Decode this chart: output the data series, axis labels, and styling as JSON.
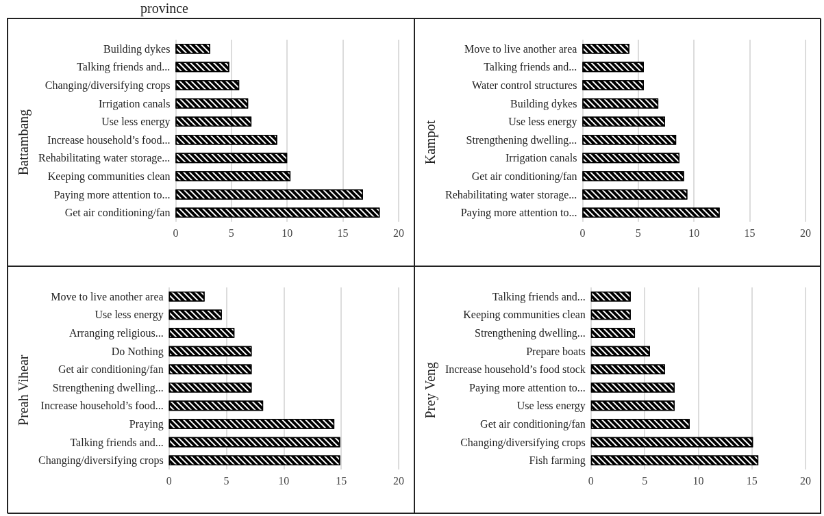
{
  "chart_data": [
    {
      "type": "bar",
      "orientation": "horizontal",
      "title": "province",
      "ylabel": "Battambang",
      "categories": [
        "Building dykes",
        "Talking friends and...",
        "Changing/diversifying crops",
        "Irrigation canals",
        "Use less energy",
        "Increase household’s food...",
        "Rehabilitating water storage...",
        "Keeping communities clean",
        "Paying more attention to...",
        "Get air conditioning/fan"
      ],
      "values": [
        3.1,
        4.8,
        5.7,
        6.5,
        6.8,
        9.1,
        10.0,
        10.3,
        16.8,
        18.3
      ],
      "color": "#000000",
      "xlim": [
        0,
        20
      ],
      "xticks": [
        0,
        5,
        10,
        15,
        20
      ],
      "grid": "x"
    },
    {
      "type": "bar",
      "orientation": "horizontal",
      "ylabel": "Kampot",
      "categories": [
        "Move to live another area",
        "Talking friends and...",
        "Water control structures",
        "Building dykes",
        "Use less energy",
        "Strengthening dwelling...",
        "Irrigation canals",
        "Get air conditioning/fan",
        "Rehabilitating water storage...",
        "Paying more attention to..."
      ],
      "values": [
        4.2,
        5.5,
        5.5,
        6.8,
        7.4,
        8.4,
        8.7,
        9.1,
        9.4,
        12.3
      ],
      "color": "#000000",
      "xlim": [
        0,
        20
      ],
      "xticks": [
        0,
        5,
        10,
        15,
        20
      ],
      "grid": "x"
    },
    {
      "type": "bar",
      "orientation": "horizontal",
      "ylabel": "Preah Vihear",
      "categories": [
        "Move to live another area",
        "Use less energy",
        "Arranging religious...",
        "Do Nothing",
        "Get air conditioning/fan",
        "Strengthening dwelling...",
        "Increase household’s food...",
        "Praying",
        "Talking friends and...",
        "Changing/diversifying crops"
      ],
      "values": [
        3.1,
        4.6,
        5.7,
        7.2,
        7.2,
        7.2,
        8.2,
        14.4,
        14.9,
        14.9
      ],
      "color": "#000000",
      "xlim": [
        0,
        20
      ],
      "xticks": [
        0,
        5,
        10,
        15,
        20
      ],
      "grid": "x"
    },
    {
      "type": "bar",
      "orientation": "horizontal",
      "ylabel": "Prey Veng",
      "categories": [
        "Talking friends and...",
        "Keeping communities clean",
        "Strengthening dwelling...",
        "Prepare boats",
        "Increase household’s food stock",
        "Paying more attention to...",
        "Use less energy",
        "Get air conditioning/fan",
        "Changing/diversifying crops",
        "Fish farming"
      ],
      "values": [
        3.7,
        3.7,
        4.1,
        5.5,
        6.9,
        7.8,
        7.8,
        9.2,
        15.1,
        15.6
      ],
      "color": "#000000",
      "xlim": [
        0,
        20
      ],
      "xticks": [
        0,
        5,
        10,
        15,
        20
      ],
      "grid": "x"
    }
  ]
}
